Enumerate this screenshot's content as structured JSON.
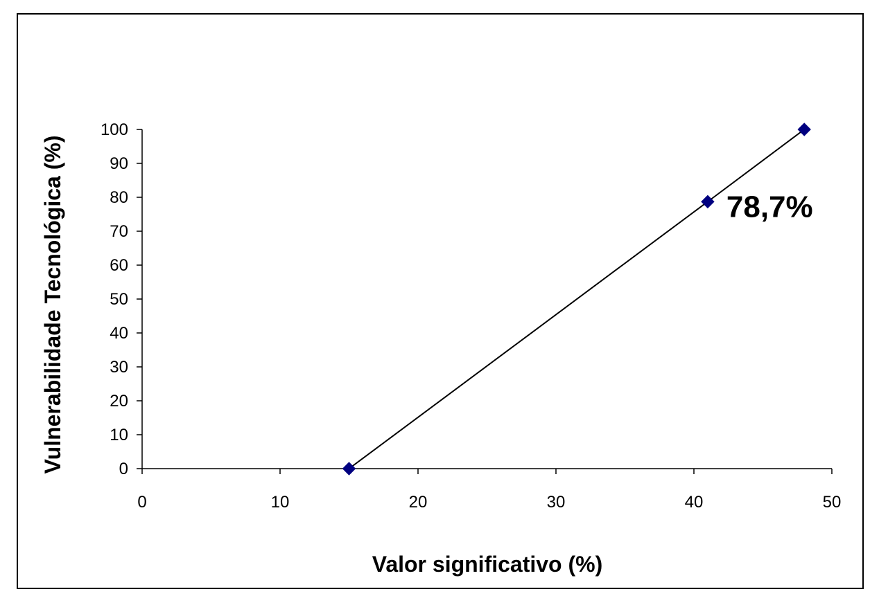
{
  "chart_data": {
    "type": "line",
    "title": "",
    "xlabel": "Valor significativo (%)",
    "ylabel": "Vulnerabilidade Tecnológica (%)",
    "xlim": [
      0,
      50
    ],
    "ylim": [
      0,
      100
    ],
    "xticks": [
      0,
      10,
      20,
      30,
      40,
      50
    ],
    "yticks": [
      0,
      10,
      20,
      30,
      40,
      50,
      60,
      70,
      80,
      90,
      100
    ],
    "grid": false,
    "legend": "none",
    "series": [
      {
        "x": [
          15,
          41,
          48
        ],
        "y": [
          0,
          78.7,
          100
        ],
        "marker": "diamond",
        "marker_color": "#000080",
        "line_color": "#000000"
      }
    ],
    "annotations": [
      {
        "text": "78,7%",
        "x": 41,
        "y": 78.7
      }
    ]
  }
}
